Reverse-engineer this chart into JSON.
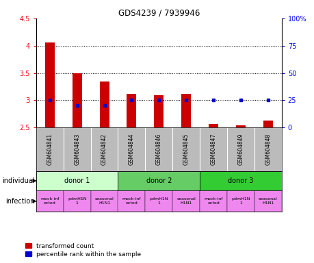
{
  "title": "GDS4239 / 7939946",
  "samples": [
    "GSM604841",
    "GSM604843",
    "GSM604842",
    "GSM604844",
    "GSM604846",
    "GSM604845",
    "GSM604847",
    "GSM604849",
    "GSM604848"
  ],
  "transformed_counts": [
    4.06,
    3.5,
    3.34,
    3.12,
    3.09,
    3.12,
    2.56,
    2.54,
    2.63
  ],
  "percentile_ranks": [
    25,
    20,
    20,
    25,
    25,
    25,
    25,
    25,
    25
  ],
  "ylim_left": [
    2.5,
    4.5
  ],
  "ylim_right": [
    0,
    100
  ],
  "yticks_left": [
    2.5,
    3.0,
    3.5,
    4.0,
    4.5
  ],
  "yticks_right": [
    0,
    25,
    50,
    75,
    100
  ],
  "ytick_labels_right": [
    "0",
    "25",
    "50",
    "75",
    "100%"
  ],
  "bar_color": "#cc0000",
  "dot_color": "#0000cc",
  "bar_bottom": 2.5,
  "donors": [
    {
      "label": "donor 1",
      "start": 0,
      "end": 3,
      "color": "#ccffcc"
    },
    {
      "label": "donor 2",
      "start": 3,
      "end": 6,
      "color": "#66cc66"
    },
    {
      "label": "donor 3",
      "start": 6,
      "end": 9,
      "color": "#33cc33"
    }
  ],
  "inf_labels": [
    "mock-inf\nected",
    "pdmH1N\n1",
    "seasonal\nH1N1",
    "mock-inf\nected",
    "pdmH1N\n1",
    "seasonal\nH1N1",
    "mock-inf\nected",
    "pdmH1N\n1",
    "seasonal\nH1N1"
  ],
  "inf_color": "#ee88ee",
  "sample_bg_color": "#bbbbbb",
  "dot_line_color": "black"
}
